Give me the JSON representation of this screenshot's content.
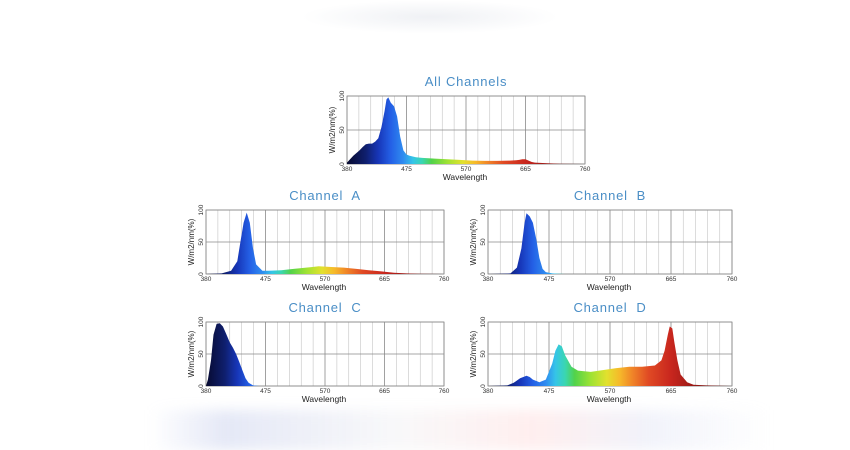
{
  "colors": {
    "title": "#4a8ec6",
    "grid": "#b8b8b8",
    "axis": "#555555"
  },
  "chart_data": [
    {
      "type": "area",
      "title": "All Channels",
      "xlabel": "Wavelength",
      "ylabel": "W/m2/nm(%)",
      "x_ticks": [
        380,
        475,
        570,
        665,
        760
      ],
      "y_ticks": [
        0,
        50,
        100
      ],
      "xlim": [
        380,
        760
      ],
      "ylim": [
        0,
        100
      ],
      "grid": true,
      "series": [
        {
          "x": [
            380,
            390,
            400,
            405,
            410,
            415,
            420,
            425,
            430,
            435,
            440,
            443,
            446,
            450,
            455,
            460,
            465,
            470,
            475,
            480,
            490,
            500,
            520,
            540,
            560,
            580,
            600,
            620,
            640,
            650,
            655,
            660,
            665,
            670,
            675,
            680,
            700,
            720,
            760
          ],
          "values": [
            2,
            12,
            20,
            25,
            29,
            30,
            30,
            33,
            38,
            54,
            78,
            95,
            98,
            90,
            85,
            70,
            40,
            20,
            14,
            12,
            10,
            9,
            8,
            7,
            6,
            5,
            4.5,
            4.5,
            5,
            5.5,
            6,
            7,
            7,
            5,
            3,
            2,
            1,
            0.5,
            0
          ]
        }
      ]
    },
    {
      "type": "area",
      "title": "Channel  A",
      "xlabel": "Wavelength",
      "ylabel": "W/m2/nm(%)",
      "x_ticks": [
        380,
        475,
        570,
        665,
        760
      ],
      "y_ticks": [
        0,
        50,
        100
      ],
      "xlim": [
        380,
        760
      ],
      "ylim": [
        0,
        100
      ],
      "grid": true,
      "series": [
        {
          "x": [
            380,
            405,
            420,
            430,
            435,
            440,
            445,
            450,
            455,
            460,
            470,
            480,
            500,
            520,
            540,
            550,
            560,
            580,
            600,
            620,
            640,
            660,
            680,
            700,
            720,
            760
          ],
          "values": [
            0,
            1,
            5,
            20,
            50,
            80,
            96,
            80,
            40,
            15,
            5,
            5,
            6,
            8,
            10,
            11,
            12,
            11,
            10,
            8,
            6,
            4,
            2,
            1,
            0.5,
            0
          ]
        }
      ]
    },
    {
      "type": "area",
      "title": "Channel  B",
      "xlabel": "Wavelength",
      "ylabel": "W/m2/nm(%)",
      "x_ticks": [
        380,
        475,
        570,
        665,
        760
      ],
      "y_ticks": [
        0,
        50,
        100
      ],
      "xlim": [
        380,
        760
      ],
      "ylim": [
        0,
        100
      ],
      "grid": true,
      "series": [
        {
          "x": [
            380,
            415,
            425,
            432,
            437,
            440,
            445,
            450,
            455,
            460,
            465,
            470,
            480,
            490,
            500,
            520,
            760
          ],
          "values": [
            0,
            1,
            10,
            40,
            80,
            95,
            90,
            80,
            55,
            25,
            8,
            3,
            1,
            0.5,
            0,
            0,
            0
          ]
        }
      ]
    },
    {
      "type": "area",
      "title": "Channel  C",
      "xlabel": "Wavelength",
      "ylabel": "W/m2/nm(%)",
      "x_ticks": [
        380,
        475,
        570,
        665,
        760
      ],
      "y_ticks": [
        0,
        50,
        100
      ],
      "xlim": [
        380,
        760
      ],
      "ylim": [
        0,
        100
      ],
      "grid": true,
      "series": [
        {
          "x": [
            380,
            383,
            388,
            392,
            397,
            402,
            407,
            412,
            418,
            423,
            428,
            433,
            438,
            443,
            448,
            455,
            465,
            480,
            760
          ],
          "values": [
            0,
            10,
            40,
            80,
            97,
            98,
            93,
            82,
            68,
            60,
            50,
            38,
            25,
            12,
            5,
            1,
            0,
            0,
            0
          ]
        }
      ]
    },
    {
      "type": "area",
      "title": "Channel  D",
      "xlabel": "Wavelength",
      "ylabel": "W/m2/nm(%)",
      "x_ticks": [
        380,
        475,
        570,
        665,
        760
      ],
      "y_ticks": [
        0,
        50,
        100
      ],
      "xlim": [
        380,
        760
      ],
      "ylim": [
        0,
        100
      ],
      "grid": true,
      "series": [
        {
          "x": [
            380,
            410,
            420,
            430,
            440,
            445,
            450,
            460,
            470,
            480,
            485,
            490,
            495,
            500,
            510,
            520,
            540,
            560,
            580,
            600,
            620,
            640,
            650,
            655,
            660,
            663,
            667,
            670,
            675,
            680,
            690,
            700,
            720,
            760
          ],
          "values": [
            0,
            1,
            5,
            12,
            16,
            14,
            10,
            6,
            10,
            35,
            55,
            65,
            62,
            48,
            30,
            24,
            22,
            25,
            28,
            30,
            30,
            32,
            40,
            55,
            80,
            93,
            90,
            70,
            40,
            18,
            6,
            2,
            1,
            0
          ]
        }
      ]
    }
  ]
}
